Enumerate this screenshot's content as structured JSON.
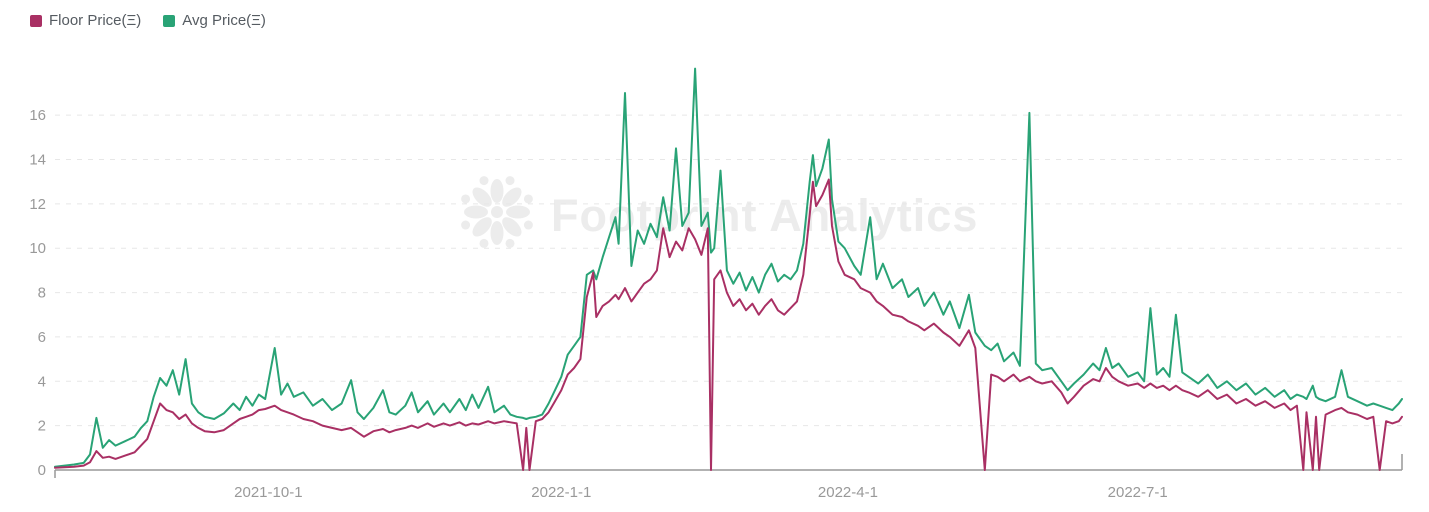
{
  "legend": {
    "items": [
      {
        "label": "Floor Price(Ξ)",
        "color": "#A93064",
        "series": "floor"
      },
      {
        "label": "Avg Price(Ξ)",
        "color": "#29A376",
        "series": "avg"
      }
    ]
  },
  "watermark": {
    "text": "Footprint Analytics",
    "logo": "footprint-flower-logo",
    "color": "#ECECEC"
  },
  "axis_colors": {
    "grid": "#E7E7E7",
    "axis_line": "#999999",
    "tick_label": "#999999"
  },
  "chart_data": {
    "type": "line",
    "title": "",
    "xlabel": "",
    "ylabel": "",
    "legend_position": "top-left",
    "grid": "dashed-horizontal",
    "ylim": [
      0,
      17.9
    ],
    "xlim": [
      0,
      423
    ],
    "y_ticks": [
      0,
      2,
      4,
      6,
      8,
      10,
      12,
      14,
      16
    ],
    "x_unit": "days from chart start (approx. 2021-07-26)",
    "x_tick_positions": [
      67,
      159,
      249,
      340
    ],
    "x_tick_labels": [
      "2021-10-1",
      "2022-1-1",
      "2022-4-1",
      "2022-7-1"
    ],
    "point_format": [
      "day",
      "floor_price_eth",
      "avg_price_eth"
    ],
    "series_meta": [
      {
        "name": "Floor Price(Ξ)",
        "color": "#A93064",
        "key": "floor_price_eth"
      },
      {
        "name": "Avg Price(Ξ)",
        "color": "#29A376",
        "key": "avg_price_eth"
      }
    ],
    "points": [
      [
        0,
        0.1,
        0.15
      ],
      [
        3,
        0.12,
        0.2
      ],
      [
        6,
        0.15,
        0.25
      ],
      [
        9,
        0.2,
        0.32
      ],
      [
        11,
        0.35,
        0.7
      ],
      [
        13,
        0.85,
        2.35
      ],
      [
        15,
        0.55,
        1.0
      ],
      [
        17,
        0.6,
        1.35
      ],
      [
        19,
        0.5,
        1.1
      ],
      [
        22,
        0.65,
        1.3
      ],
      [
        25,
        0.8,
        1.5
      ],
      [
        27,
        1.1,
        1.9
      ],
      [
        29,
        1.4,
        2.2
      ],
      [
        31,
        2.2,
        3.3
      ],
      [
        33,
        3.0,
        4.15
      ],
      [
        35,
        2.7,
        3.8
      ],
      [
        37,
        2.6,
        4.5
      ],
      [
        39,
        2.3,
        3.4
      ],
      [
        41,
        2.5,
        5.0
      ],
      [
        43,
        2.1,
        3.0
      ],
      [
        45,
        1.9,
        2.6
      ],
      [
        47,
        1.75,
        2.4
      ],
      [
        50,
        1.7,
        2.3
      ],
      [
        53,
        1.8,
        2.55
      ],
      [
        56,
        2.1,
        3.0
      ],
      [
        58,
        2.3,
        2.7
      ],
      [
        60,
        2.4,
        3.3
      ],
      [
        62,
        2.5,
        2.9
      ],
      [
        64,
        2.7,
        3.4
      ],
      [
        66,
        2.75,
        3.2
      ],
      [
        69,
        2.9,
        5.5
      ],
      [
        71,
        2.7,
        3.4
      ],
      [
        73,
        2.6,
        3.9
      ],
      [
        75,
        2.5,
        3.3
      ],
      [
        78,
        2.3,
        3.5
      ],
      [
        81,
        2.2,
        2.9
      ],
      [
        84,
        2.0,
        3.2
      ],
      [
        87,
        1.9,
        2.7
      ],
      [
        90,
        1.8,
        3.0
      ],
      [
        93,
        1.9,
        4.05
      ],
      [
        95,
        1.7,
        2.6
      ],
      [
        97,
        1.5,
        2.3
      ],
      [
        100,
        1.75,
        2.8
      ],
      [
        103,
        1.85,
        3.6
      ],
      [
        105,
        1.7,
        2.6
      ],
      [
        107,
        1.8,
        2.5
      ],
      [
        110,
        1.9,
        2.9
      ],
      [
        112,
        2.0,
        3.5
      ],
      [
        114,
        1.9,
        2.6
      ],
      [
        117,
        2.1,
        3.1
      ],
      [
        119,
        1.95,
        2.5
      ],
      [
        122,
        2.1,
        3.0
      ],
      [
        124,
        2.0,
        2.6
      ],
      [
        127,
        2.15,
        3.2
      ],
      [
        129,
        2.0,
        2.7
      ],
      [
        131,
        2.1,
        3.4
      ],
      [
        133,
        2.05,
        2.8
      ],
      [
        136,
        2.2,
        3.75
      ],
      [
        138,
        2.1,
        2.6
      ],
      [
        141,
        2.2,
        2.9
      ],
      [
        143,
        2.15,
        2.5
      ],
      [
        145,
        2.1,
        2.4
      ],
      [
        147,
        0,
        2.35
      ],
      [
        148,
        1.9,
        2.3
      ],
      [
        149,
        0,
        2.35
      ],
      [
        151,
        2.2,
        2.4
      ],
      [
        153,
        2.3,
        2.5
      ],
      [
        155,
        2.6,
        3.0
      ],
      [
        157,
        3.1,
        3.6
      ],
      [
        159,
        3.6,
        4.2
      ],
      [
        161,
        4.3,
        5.2
      ],
      [
        163,
        4.6,
        5.6
      ],
      [
        165,
        5.0,
        6.0
      ],
      [
        167,
        7.8,
        8.8
      ],
      [
        169,
        8.9,
        9.0
      ],
      [
        170,
        6.9,
        8.6
      ],
      [
        172,
        7.4,
        9.6
      ],
      [
        174,
        7.6,
        10.5
      ],
      [
        176,
        7.9,
        11.4
      ],
      [
        177,
        7.7,
        10.2
      ],
      [
        179,
        8.2,
        17.0
      ],
      [
        181,
        7.6,
        9.2
      ],
      [
        183,
        8.0,
        10.8
      ],
      [
        185,
        8.4,
        10.2
      ],
      [
        187,
        8.6,
        11.1
      ],
      [
        189,
        9.0,
        10.5
      ],
      [
        191,
        10.9,
        12.3
      ],
      [
        193,
        9.6,
        10.8
      ],
      [
        195,
        10.3,
        14.5
      ],
      [
        197,
        9.9,
        11.0
      ],
      [
        199,
        10.9,
        11.6
      ],
      [
        201,
        10.4,
        18.1
      ],
      [
        203,
        9.7,
        11.0
      ],
      [
        205,
        10.9,
        11.6
      ],
      [
        206,
        0,
        9.8
      ],
      [
        207,
        8.6,
        10.0
      ],
      [
        209,
        9.0,
        13.5
      ],
      [
        211,
        8.0,
        9.0
      ],
      [
        213,
        7.4,
        8.4
      ],
      [
        215,
        7.7,
        8.9
      ],
      [
        217,
        7.2,
        8.1
      ],
      [
        219,
        7.5,
        8.7
      ],
      [
        221,
        7.0,
        8.0
      ],
      [
        223,
        7.4,
        8.8
      ],
      [
        225,
        7.7,
        9.3
      ],
      [
        227,
        7.2,
        8.5
      ],
      [
        229,
        7.0,
        8.8
      ],
      [
        231,
        7.3,
        8.6
      ],
      [
        233,
        7.6,
        9.0
      ],
      [
        235,
        8.8,
        10.2
      ],
      [
        237,
        11.5,
        13.0
      ],
      [
        238,
        13.0,
        14.2
      ],
      [
        239,
        11.9,
        12.8
      ],
      [
        241,
        12.4,
        13.6
      ],
      [
        243,
        13.1,
        14.9
      ],
      [
        244,
        11.0,
        12.2
      ],
      [
        246,
        9.4,
        10.3
      ],
      [
        248,
        8.8,
        10.0
      ],
      [
        251,
        8.6,
        9.2
      ],
      [
        253,
        8.2,
        8.8
      ],
      [
        256,
        8.0,
        11.4
      ],
      [
        258,
        7.6,
        8.6
      ],
      [
        260,
        7.4,
        9.3
      ],
      [
        263,
        7.0,
        8.2
      ],
      [
        266,
        6.9,
        8.6
      ],
      [
        268,
        6.7,
        7.8
      ],
      [
        271,
        6.5,
        8.2
      ],
      [
        273,
        6.3,
        7.4
      ],
      [
        276,
        6.6,
        8.0
      ],
      [
        279,
        6.2,
        7.0
      ],
      [
        281,
        6.0,
        7.6
      ],
      [
        284,
        5.6,
        6.4
      ],
      [
        287,
        6.3,
        7.9
      ],
      [
        289,
        5.5,
        6.2
      ],
      [
        292,
        0,
        5.6
      ],
      [
        294,
        4.3,
        5.4
      ],
      [
        296,
        4.2,
        5.7
      ],
      [
        298,
        4.0,
        4.9
      ],
      [
        301,
        4.3,
        5.3
      ],
      [
        303,
        4.0,
        4.7
      ],
      [
        306,
        4.2,
        16.1
      ],
      [
        308,
        4.0,
        4.8
      ],
      [
        310,
        3.9,
        4.5
      ],
      [
        313,
        4.0,
        4.6
      ],
      [
        316,
        3.5,
        4.0
      ],
      [
        318,
        3.0,
        3.6
      ],
      [
        320,
        3.3,
        3.9
      ],
      [
        323,
        3.8,
        4.3
      ],
      [
        326,
        4.1,
        4.8
      ],
      [
        328,
        4.0,
        4.5
      ],
      [
        330,
        4.6,
        5.5
      ],
      [
        332,
        4.2,
        4.6
      ],
      [
        334,
        4.0,
        4.8
      ],
      [
        337,
        3.8,
        4.2
      ],
      [
        340,
        3.9,
        4.4
      ],
      [
        342,
        3.7,
        4.0
      ],
      [
        344,
        3.9,
        7.3
      ],
      [
        346,
        3.7,
        4.3
      ],
      [
        348,
        3.8,
        4.6
      ],
      [
        350,
        3.6,
        4.2
      ],
      [
        352,
        3.8,
        7.0
      ],
      [
        354,
        3.6,
        4.4
      ],
      [
        356,
        3.5,
        4.2
      ],
      [
        359,
        3.3,
        3.9
      ],
      [
        362,
        3.6,
        4.3
      ],
      [
        365,
        3.2,
        3.7
      ],
      [
        368,
        3.4,
        4.0
      ],
      [
        371,
        3.0,
        3.6
      ],
      [
        374,
        3.2,
        3.9
      ],
      [
        377,
        2.9,
        3.4
      ],
      [
        380,
        3.1,
        3.7
      ],
      [
        383,
        2.8,
        3.3
      ],
      [
        386,
        3.0,
        3.6
      ],
      [
        388,
        2.7,
        3.2
      ],
      [
        390,
        2.9,
        3.4
      ],
      [
        392,
        0,
        3.3
      ],
      [
        393,
        2.6,
        3.2
      ],
      [
        395,
        0,
        3.8
      ],
      [
        396,
        2.4,
        3.3
      ],
      [
        397,
        0,
        3.2
      ],
      [
        399,
        2.5,
        3.1
      ],
      [
        402,
        2.7,
        3.3
      ],
      [
        404,
        2.8,
        4.5
      ],
      [
        406,
        2.6,
        3.3
      ],
      [
        409,
        2.5,
        3.1
      ],
      [
        412,
        2.3,
        2.9
      ],
      [
        414,
        2.4,
        3.0
      ],
      [
        416,
        0,
        2.9
      ],
      [
        418,
        2.2,
        2.8
      ],
      [
        420,
        2.1,
        2.7
      ],
      [
        422,
        2.2,
        3.0
      ],
      [
        423,
        2.4,
        3.2
      ]
    ]
  }
}
